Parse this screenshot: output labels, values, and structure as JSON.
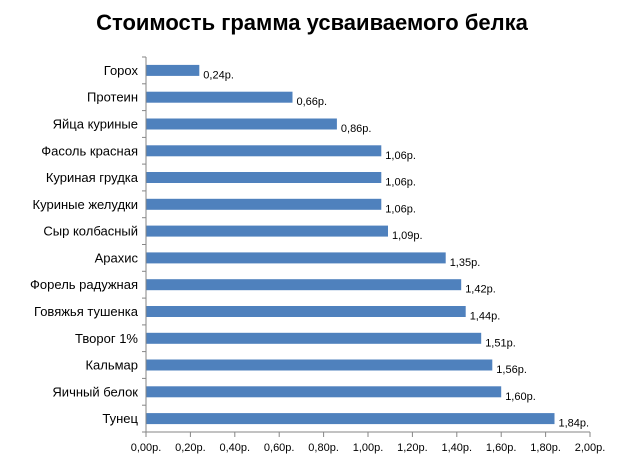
{
  "chart_data": {
    "type": "bar",
    "orientation": "horizontal",
    "title": "Стоимость грамма усваиваемого белка",
    "categories": [
      "Горох",
      "Протеин",
      "Яйца куриные",
      "Фасоль красная",
      "Куриная грудка",
      "Куриные желудки",
      "Сыр колбасный",
      "Арахис",
      "Форель радужная",
      "Говяжья тушенка",
      "Творог 1%",
      "Кальмар",
      "Яичный белок",
      "Тунец"
    ],
    "values": [
      0.24,
      0.66,
      0.86,
      1.06,
      1.06,
      1.06,
      1.09,
      1.35,
      1.42,
      1.44,
      1.51,
      1.56,
      1.6,
      1.84
    ],
    "data_labels": [
      "0,24р.",
      "0,66р.",
      "0,86р.",
      "1,06р.",
      "1,06р.",
      "1,06р.",
      "1,09р.",
      "1,35р.",
      "1,42р.",
      "1,44р.",
      "1,51р.",
      "1,56р.",
      "1,60р.",
      "1,84р."
    ],
    "xticks": [
      0,
      0.2,
      0.4,
      0.6,
      0.8,
      1.0,
      1.2,
      1.4,
      1.6,
      1.8,
      2.0
    ],
    "xtick_labels": [
      "0,00р.",
      "0,20р.",
      "0,40р.",
      "0,60р.",
      "0,80р.",
      "1,00р.",
      "1,20р.",
      "1,40р.",
      "1,60р.",
      "1,80р.",
      "2,00р."
    ],
    "xlim": [
      0,
      2.0
    ],
    "xlabel": "",
    "ylabel": "",
    "grid": false,
    "legend": "none",
    "bar_color": "#4F81BD"
  }
}
